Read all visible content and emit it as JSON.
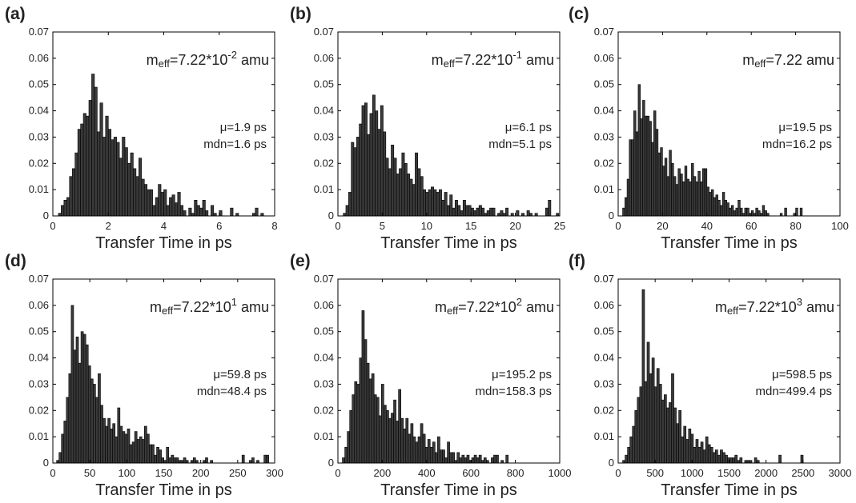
{
  "chart_data": [
    {
      "panel": "(a)",
      "type": "bar",
      "mass_label": {
        "prefix": "m",
        "sub": "eff",
        "value": "=7.22*10",
        "sup": "-2",
        "suffix": " amu"
      },
      "stats": [
        "μ=1.9 ps",
        "mdn=1.6 ps"
      ],
      "xlabel": "Transfer Time in ps",
      "xlim": [
        0,
        8
      ],
      "ylim": [
        0,
        0.07
      ],
      "xticks": [
        0,
        2,
        4,
        6,
        8
      ],
      "yticks": [
        "0",
        "0.01",
        "0.02",
        "0.03",
        "0.04",
        "0.05",
        "0.06",
        "0.07"
      ],
      "bin_start": 0.2,
      "bin_width": 0.1,
      "values": [
        0.001,
        0.004,
        0.006,
        0.007,
        0.015,
        0.018,
        0.024,
        0.033,
        0.035,
        0.039,
        0.038,
        0.044,
        0.054,
        0.049,
        0.032,
        0.043,
        0.03,
        0.038,
        0.033,
        0.029,
        0.03,
        0.028,
        0.022,
        0.03,
        0.026,
        0.02,
        0.024,
        0.018,
        0.015,
        0.022,
        0.014,
        0.012,
        0.01,
        0.01,
        0.004,
        0.007,
        0.012,
        0.009,
        0.01,
        0.004,
        0.007,
        0.008,
        0.005,
        0.009,
        0.004,
        0.002,
        0.0,
        0.003,
        0.001,
        0.006,
        0.004,
        0.003,
        0.006,
        0.002,
        0.0,
        0.004,
        0.001,
        0.0,
        0.002,
        0.0,
        0.0,
        0.0,
        0.003,
        0.0,
        0.001,
        0.0,
        0.0,
        0.0,
        0.0,
        0.0,
        0.001,
        0.003,
        0.0,
        0.001,
        0.0,
        0.0,
        0.0
      ]
    },
    {
      "panel": "(b)",
      "type": "bar",
      "mass_label": {
        "prefix": "m",
        "sub": "eff",
        "value": "=7.22*10",
        "sup": "-1",
        "suffix": " amu"
      },
      "stats": [
        "μ=6.1 ps",
        "mdn=5.1 ps"
      ],
      "xlabel": "Transfer Time in ps",
      "xlim": [
        0,
        25
      ],
      "ylim": [
        0,
        0.07
      ],
      "xticks": [
        0,
        5,
        10,
        15,
        20,
        25
      ],
      "yticks": [
        "0",
        "0.01",
        "0.02",
        "0.03",
        "0.04",
        "0.05",
        "0.06",
        "0.07"
      ],
      "bin_start": 0.6,
      "bin_width": 0.3,
      "values": [
        0.001,
        0.004,
        0.009,
        0.028,
        0.026,
        0.03,
        0.035,
        0.042,
        0.043,
        0.031,
        0.039,
        0.046,
        0.04,
        0.033,
        0.042,
        0.032,
        0.022,
        0.018,
        0.027,
        0.022,
        0.016,
        0.018,
        0.024,
        0.02,
        0.016,
        0.014,
        0.012,
        0.024,
        0.018,
        0.015,
        0.01,
        0.009,
        0.01,
        0.011,
        0.01,
        0.009,
        0.01,
        0.006,
        0.009,
        0.004,
        0.008,
        0.003,
        0.006,
        0.004,
        0.002,
        0.006,
        0.004,
        0.004,
        0.003,
        0.002,
        0.003,
        0.004,
        0.003,
        0.001,
        0.002,
        0.003,
        0.003,
        0.0,
        0.001,
        0.002,
        0.001,
        0.003,
        0.0,
        0.001,
        0.0,
        0.002,
        0.0,
        0.001,
        0.0,
        0.002,
        0.001,
        0.0,
        0.001,
        0.0,
        0.0,
        0.0,
        0.003,
        0.006,
        0.0,
        0.0,
        0.001,
        0.0
      ]
    },
    {
      "panel": "(c)",
      "type": "bar",
      "mass_label": {
        "prefix": "m",
        "sub": "eff",
        "value": "=7.22",
        "sup": "",
        "suffix": " amu"
      },
      "stats": [
        "μ=19.5 ps",
        "mdn=16.2 ps"
      ],
      "xlabel": "Transfer Time in ps",
      "xlim": [
        0,
        100
      ],
      "ylim": [
        0,
        0.07
      ],
      "xticks": [
        0,
        20,
        40,
        60,
        80,
        100
      ],
      "yticks": [
        "0",
        "0.01",
        "0.02",
        "0.03",
        "0.04",
        "0.05",
        "0.06",
        "0.07"
      ],
      "bin_start": 2,
      "bin_width": 1,
      "values": [
        0.003,
        0.007,
        0.014,
        0.029,
        0.029,
        0.04,
        0.032,
        0.05,
        0.037,
        0.044,
        0.038,
        0.038,
        0.036,
        0.028,
        0.04,
        0.033,
        0.024,
        0.026,
        0.019,
        0.022,
        0.015,
        0.025,
        0.02,
        0.015,
        0.012,
        0.018,
        0.016,
        0.013,
        0.019,
        0.014,
        0.013,
        0.02,
        0.015,
        0.013,
        0.017,
        0.013,
        0.018,
        0.018,
        0.011,
        0.009,
        0.01,
        0.007,
        0.008,
        0.006,
        0.004,
        0.009,
        0.006,
        0.005,
        0.003,
        0.004,
        0.002,
        0.003,
        0.006,
        0.003,
        0.001,
        0.003,
        0.003,
        0.001,
        0.002,
        0.001,
        0.003,
        0.002,
        0.001,
        0.004,
        0.002,
        0.001,
        0.0,
        0.0,
        0.0,
        0.0,
        0.0,
        0.001,
        0.0,
        0.003,
        0.0,
        0.0,
        0.0,
        0.001,
        0.003,
        0.0,
        0.003
      ]
    },
    {
      "panel": "(d)",
      "type": "bar",
      "mass_label": {
        "prefix": "m",
        "sub": "eff",
        "value": "=7.22*10",
        "sup": "1",
        "suffix": " amu"
      },
      "stats": [
        "μ=59.8 ps",
        "mdn=48.4 ps"
      ],
      "xlabel": "Transfer Time in ps",
      "xlim": [
        0,
        300
      ],
      "ylim": [
        0,
        0.07
      ],
      "xticks": [
        0,
        50,
        100,
        150,
        200,
        250,
        300
      ],
      "yticks": [
        "0",
        "0.01",
        "0.02",
        "0.03",
        "0.04",
        "0.05",
        "0.06",
        "0.07"
      ],
      "bin_start": 5,
      "bin_width": 3.3,
      "values": [
        0.001,
        0.004,
        0.011,
        0.016,
        0.025,
        0.034,
        0.06,
        0.043,
        0.048,
        0.038,
        0.05,
        0.049,
        0.045,
        0.037,
        0.032,
        0.03,
        0.025,
        0.034,
        0.022,
        0.017,
        0.014,
        0.017,
        0.013,
        0.015,
        0.01,
        0.021,
        0.014,
        0.012,
        0.011,
        0.013,
        0.007,
        0.008,
        0.012,
        0.009,
        0.01,
        0.009,
        0.014,
        0.011,
        0.007,
        0.007,
        0.003,
        0.006,
        0.005,
        0.002,
        0.001,
        0.006,
        0.002,
        0.003,
        0.002,
        0.002,
        0.001,
        0.001,
        0.002,
        0.001,
        0.0,
        0.001,
        0.002,
        0.001,
        0.0,
        0.0,
        0.001,
        0.002,
        0.0,
        0.001,
        0.0,
        0.0,
        0.0,
        0.0,
        0.0,
        0.0,
        0.0,
        0.0,
        0.0,
        0.0,
        0.0,
        0.0,
        0.003,
        0.0,
        0.0,
        0.001,
        0.002,
        0.0,
        0.001,
        0.0,
        0.0,
        0.003,
        0.003
      ]
    },
    {
      "panel": "(e)",
      "type": "bar",
      "mass_label": {
        "prefix": "m",
        "sub": "eff",
        "value": "=7.22*10",
        "sup": "2",
        "suffix": " amu"
      },
      "stats": [
        "μ=195.2 ps",
        "mdn=158.3 ps"
      ],
      "xlabel": "Transfer Time in ps",
      "xlim": [
        0,
        1000
      ],
      "ylim": [
        0,
        0.07
      ],
      "xticks": [
        0,
        200,
        400,
        600,
        800,
        1000
      ],
      "yticks": [
        "0",
        "0.01",
        "0.02",
        "0.03",
        "0.04",
        "0.05",
        "0.06",
        "0.07"
      ],
      "bin_start": 20,
      "bin_width": 11,
      "values": [
        0.002,
        0.006,
        0.012,
        0.02,
        0.026,
        0.031,
        0.03,
        0.04,
        0.058,
        0.047,
        0.038,
        0.032,
        0.034,
        0.026,
        0.025,
        0.018,
        0.03,
        0.022,
        0.02,
        0.017,
        0.019,
        0.024,
        0.016,
        0.028,
        0.017,
        0.013,
        0.017,
        0.011,
        0.015,
        0.01,
        0.008,
        0.01,
        0.015,
        0.011,
        0.006,
        0.009,
        0.006,
        0.008,
        0.004,
        0.01,
        0.005,
        0.005,
        0.002,
        0.008,
        0.004,
        0.004,
        0.001,
        0.004,
        0.002,
        0.003,
        0.002,
        0.003,
        0.001,
        0.002,
        0.003,
        0.002,
        0.003,
        0.001,
        0.002,
        0.001,
        0.0,
        0.002,
        0.003,
        0.003,
        0.0,
        0.001,
        0.0,
        0.003,
        0.0,
        0.0,
        0.0,
        0.0,
        0.0,
        0.0,
        0.0,
        0.0,
        0.0,
        0.0
      ]
    },
    {
      "panel": "(f)",
      "type": "bar",
      "mass_label": {
        "prefix": "m",
        "sub": "eff",
        "value": "=7.22*10",
        "sup": "3",
        "suffix": " amu"
      },
      "stats": [
        "μ=598.5 ps",
        "mdn=499.4 ps"
      ],
      "xlabel": "Transfer Time in ps",
      "xlim": [
        0,
        3000
      ],
      "ylim": [
        0,
        0.07
      ],
      "xticks": [
        0,
        500,
        1000,
        1500,
        2000,
        2500,
        3000
      ],
      "yticks": [
        "0",
        "0.01",
        "0.02",
        "0.03",
        "0.04",
        "0.05",
        "0.06",
        "0.07"
      ],
      "bin_start": 60,
      "bin_width": 33,
      "values": [
        0.001,
        0.003,
        0.006,
        0.01,
        0.014,
        0.02,
        0.025,
        0.029,
        0.066,
        0.031,
        0.046,
        0.034,
        0.04,
        0.029,
        0.036,
        0.03,
        0.024,
        0.026,
        0.021,
        0.023,
        0.034,
        0.021,
        0.015,
        0.02,
        0.01,
        0.014,
        0.009,
        0.013,
        0.011,
        0.006,
        0.009,
        0.006,
        0.008,
        0.005,
        0.01,
        0.007,
        0.006,
        0.004,
        0.005,
        0.003,
        0.005,
        0.004,
        0.003,
        0.002,
        0.002,
        0.002,
        0.003,
        0.001,
        0.002,
        0.0,
        0.001,
        0.001,
        0.001,
        0.0,
        0.002,
        0.001,
        0.0,
        0.0,
        0.0,
        0.0,
        0.0,
        0.0,
        0.0,
        0.0,
        0.003,
        0.0,
        0.0,
        0.0,
        0.0,
        0.0,
        0.0,
        0.0,
        0.0,
        0.003
      ]
    }
  ]
}
